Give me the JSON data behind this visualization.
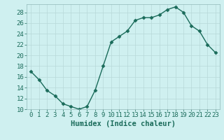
{
  "x": [
    0,
    1,
    2,
    3,
    4,
    5,
    6,
    7,
    8,
    9,
    10,
    11,
    12,
    13,
    14,
    15,
    16,
    17,
    18,
    19,
    20,
    21,
    22,
    23
  ],
  "y": [
    17,
    15.5,
    13.5,
    12.5,
    11,
    10.5,
    10,
    10.5,
    13.5,
    18,
    22.5,
    23.5,
    24.5,
    26.5,
    27,
    27,
    27.5,
    28.5,
    29,
    28,
    25.5,
    24.5,
    22,
    20.5
  ],
  "line_color": "#1a6b5a",
  "marker": "D",
  "marker_size": 2.5,
  "bg_color": "#cff0f0",
  "grid_color": "#b8d8d8",
  "xlabel": "Humidex (Indice chaleur)",
  "ylim": [
    10,
    29.5
  ],
  "xlim": [
    -0.5,
    23.5
  ],
  "yticks": [
    10,
    12,
    14,
    16,
    18,
    20,
    22,
    24,
    26,
    28
  ],
  "xticks": [
    0,
    1,
    2,
    3,
    4,
    5,
    6,
    7,
    8,
    9,
    10,
    11,
    12,
    13,
    14,
    15,
    16,
    17,
    18,
    19,
    20,
    21,
    22,
    23
  ],
  "tick_label_size": 6.5,
  "xlabel_size": 7.5
}
